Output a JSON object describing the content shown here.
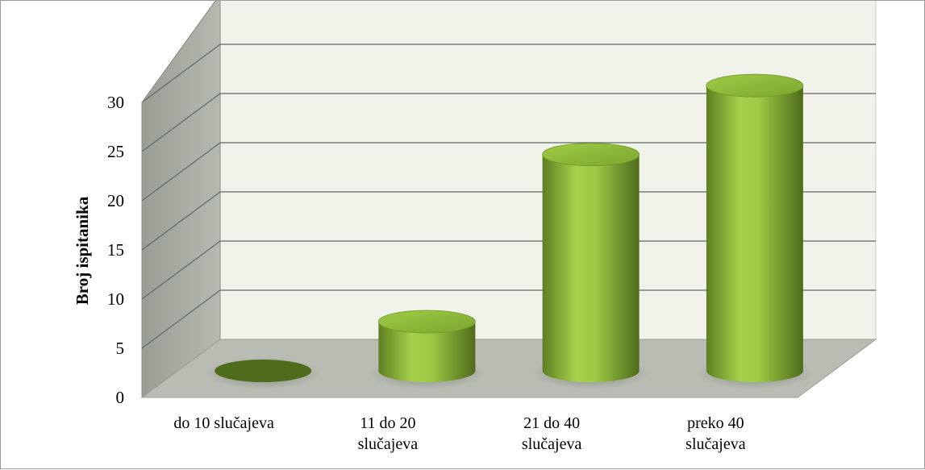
{
  "chart_data": {
    "type": "bar",
    "style": "3d-cylinder",
    "categories": [
      [
        "do 10 slučajeva"
      ],
      [
        "11 do 20",
        "slučajeva"
      ],
      [
        "21 do 40",
        "slučajeva"
      ],
      [
        "preko 40",
        "slučajeva"
      ]
    ],
    "values": [
      0,
      5,
      22,
      29
    ],
    "title": "",
    "xlabel": "",
    "ylabel": "Broj ispitanika",
    "ylim": [
      0,
      30
    ],
    "yticks": [
      0,
      5,
      10,
      15,
      20,
      25,
      30
    ],
    "grid": true,
    "legend": "none",
    "colors": {
      "bar_light": "#a6d14a",
      "bar_mid": "#8cb83a",
      "bar_dark": "#4f6b1c",
      "back_wall": "#f1f3ea",
      "side_wall": "#a7aaa0",
      "floor": "#b9bcb2",
      "grid": "#5f6a66"
    }
  }
}
